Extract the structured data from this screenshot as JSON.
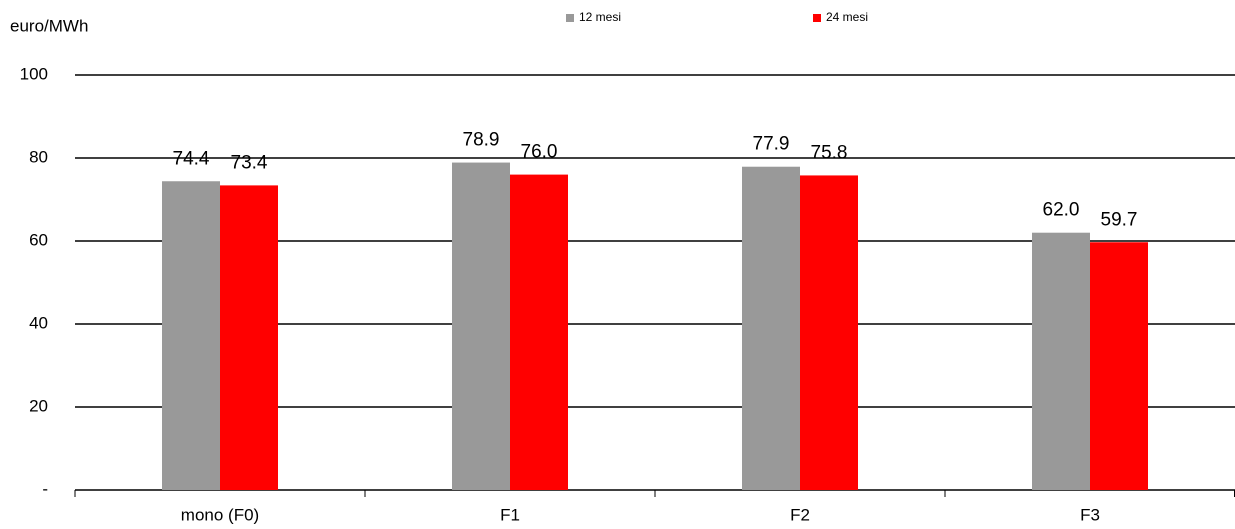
{
  "chart_data": {
    "type": "bar",
    "y_label": "euro/MWh",
    "categories": [
      "mono (F0)",
      "F1",
      "F2",
      "F3"
    ],
    "series": [
      {
        "name": "12 mesi",
        "color": "#999999",
        "values": [
          74.4,
          78.9,
          77.9,
          62.0
        ],
        "value_labels": [
          "74.4",
          "78.9",
          "77.9",
          "62.0"
        ]
      },
      {
        "name": "24 mesi",
        "color": "#ff0000",
        "values": [
          73.4,
          76.0,
          75.8,
          59.7
        ],
        "value_labels": [
          "73.4",
          "76.0",
          "75.8",
          "59.7"
        ]
      }
    ],
    "ylim": [
      0,
      100
    ],
    "yticks": [
      {
        "value": 0,
        "label": "-"
      },
      20,
      40,
      60,
      80,
      100
    ],
    "grid": true,
    "legend": "top"
  }
}
